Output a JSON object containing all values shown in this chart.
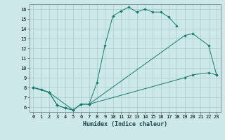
{
  "xlabel": "Humidex (Indice chaleur)",
  "bg_color": "#cce8e8",
  "grid_color": "#aacccc",
  "line_color": "#1a7a6e",
  "xlim": [
    -0.5,
    23.5
  ],
  "ylim": [
    5.5,
    16.5
  ],
  "xticks": [
    0,
    1,
    2,
    3,
    4,
    5,
    6,
    7,
    8,
    9,
    10,
    11,
    12,
    13,
    14,
    15,
    16,
    17,
    18,
    19,
    20,
    21,
    22,
    23
  ],
  "yticks": [
    6,
    7,
    8,
    9,
    10,
    11,
    12,
    13,
    14,
    15,
    16
  ],
  "line1_x": [
    0,
    1,
    2,
    3,
    4,
    5,
    6,
    7,
    8,
    9,
    10,
    11,
    12,
    13,
    14,
    15,
    16,
    17,
    18
  ],
  "line1_y": [
    8,
    7.8,
    7.5,
    6.2,
    5.9,
    5.7,
    6.3,
    6.3,
    8.5,
    12.3,
    15.3,
    15.8,
    16.2,
    15.7,
    16.0,
    15.7,
    15.7,
    15.2,
    14.3
  ],
  "line2_x": [
    0,
    2,
    3,
    4,
    5,
    6,
    7,
    19,
    20,
    22,
    23
  ],
  "line2_y": [
    8,
    7.5,
    6.2,
    5.9,
    5.7,
    6.3,
    6.3,
    13.3,
    13.5,
    12.3,
    9.3
  ],
  "line3_x": [
    0,
    2,
    5,
    6,
    7,
    19,
    20,
    22,
    23
  ],
  "line3_y": [
    8,
    7.5,
    5.7,
    6.3,
    6.3,
    9.0,
    9.3,
    9.5,
    9.3
  ],
  "xlabel_fontsize": 6.0,
  "tick_fontsize": 5.0,
  "linewidth": 0.7,
  "markersize": 2.2
}
